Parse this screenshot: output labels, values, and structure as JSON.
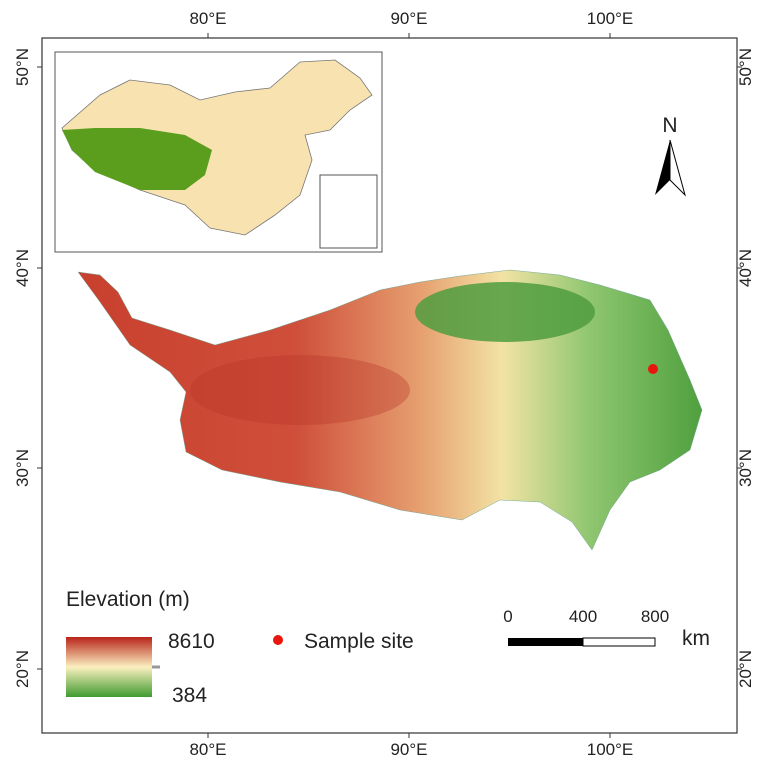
{
  "map": {
    "top_labels": [
      "80°E",
      "90°E",
      "100°E"
    ],
    "bottom_labels": [
      "80°E",
      "90°E",
      "100°E"
    ],
    "left_labels": [
      "50°N",
      "40°N",
      "30°N",
      "20°N"
    ],
    "right_labels": [
      "50°N",
      "40°N",
      "30°N",
      "20°N"
    ],
    "north": "N",
    "legend": {
      "title": "Elevation (m)",
      "max": "8610",
      "min": "384",
      "site": "Sample site"
    },
    "scale_bar": {
      "labels": [
        "0",
        "400",
        "800"
      ],
      "unit": "km"
    }
  }
}
